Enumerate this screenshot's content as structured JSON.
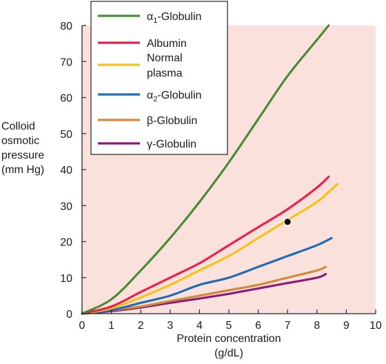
{
  "chart_data": {
    "type": "line",
    "xlabel": [
      "Protein concentration",
      "(g/dL)"
    ],
    "ylabel": [
      "Colloid",
      "osmotic",
      "pressure",
      "(mm Hg)"
    ],
    "xlim": [
      0,
      10
    ],
    "ylim": [
      0,
      80
    ],
    "xticks": [
      "0",
      "1",
      "2",
      "3",
      "4",
      "5",
      "6",
      "7",
      "8",
      "9",
      "10"
    ],
    "yticks": [
      "0",
      "10",
      "20",
      "30",
      "40",
      "50",
      "60",
      "70",
      "80"
    ],
    "grid": false,
    "legend_position": "top-left",
    "background_color": "#fbe1dc",
    "series": [
      {
        "name": "α1-Globulin",
        "legend_parts": [
          "α",
          "1",
          "-Globulin"
        ],
        "color": "#4a8a35",
        "x": [
          0,
          1,
          2,
          3,
          4,
          5,
          6,
          7,
          8,
          8.4
        ],
        "y": [
          0,
          4,
          12,
          21,
          31,
          42,
          54,
          66,
          76,
          80
        ]
      },
      {
        "name": "Albumin",
        "legend_parts": [
          "Albumin"
        ],
        "color": "#e8204a",
        "x": [
          0,
          1,
          2,
          3,
          4,
          5,
          6,
          7,
          8,
          8.4
        ],
        "y": [
          0,
          2,
          6,
          10,
          14,
          19,
          24,
          29,
          35,
          38
        ]
      },
      {
        "name": "Normal plasma",
        "legend_parts": [
          "Normal",
          "plasma"
        ],
        "color": "#f5c216",
        "x": [
          0,
          1,
          2,
          3,
          4,
          5,
          6,
          7,
          8,
          8.7
        ],
        "y": [
          0,
          1.5,
          4.5,
          8,
          12,
          16,
          21,
          26,
          31,
          36
        ]
      },
      {
        "name": "α2-Globulin",
        "legend_parts": [
          "α",
          "2",
          "-Globulin"
        ],
        "color": "#1f6bb5",
        "x": [
          0,
          1,
          2,
          3,
          4,
          5,
          6,
          7,
          8,
          8.5
        ],
        "y": [
          0,
          1,
          3,
          5,
          8,
          10,
          13,
          16,
          19,
          21
        ]
      },
      {
        "name": "β-Globulin",
        "legend_parts": [
          "β-Globulin"
        ],
        "color": "#d18a3a",
        "x": [
          0,
          1,
          2,
          3,
          4,
          5,
          6,
          7,
          8,
          8.3
        ],
        "y": [
          0,
          1,
          2,
          3.5,
          5,
          6.5,
          8,
          10,
          12,
          13
        ]
      },
      {
        "name": "γ-Globulin",
        "legend_parts": [
          "γ-Globulin"
        ],
        "color": "#8b1a7d",
        "x": [
          0,
          1,
          2,
          3,
          4,
          5,
          6,
          7,
          8,
          8.3
        ],
        "y": [
          0,
          0.7,
          1.7,
          3,
          4.2,
          5.5,
          7,
          8.5,
          10,
          11
        ]
      }
    ],
    "annotations": [
      {
        "type": "point",
        "x": 7,
        "y": 25.5,
        "series": "Normal plasma",
        "color": "#111111"
      }
    ]
  }
}
